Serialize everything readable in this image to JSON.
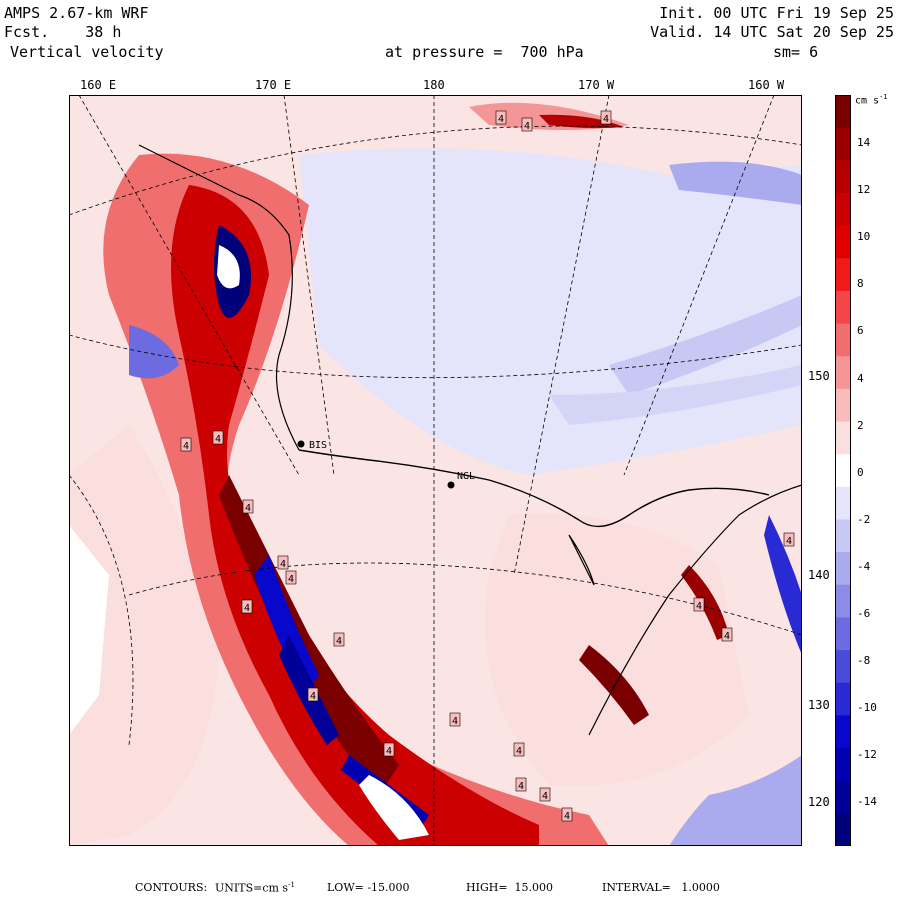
{
  "header": {
    "model": "AMPS 2.67-km WRF",
    "forecast": "Fcst.    38 h",
    "field": "Vertical velocity",
    "init": "Init. 00 UTC Fri 19 Sep 25",
    "valid": "Valid. 14 UTC Sat 20 Sep 25",
    "pressure": "at pressure =  700 hPa",
    "smoothing": "sm= 6"
  },
  "lon_labels": [
    "160 E",
    "170 E",
    "180",
    "170 W",
    "160 W"
  ],
  "lat_labels": [
    "150 W",
    "140 W",
    "130 W",
    "120 W"
  ],
  "colorbar": {
    "units": "cm s",
    "units_exp": "-1",
    "ticks": [
      "14",
      "12",
      "10",
      "8",
      "6",
      "4",
      "2",
      "0",
      "-2",
      "-4",
      "-6",
      "-8",
      "-10",
      "-12",
      "-14"
    ],
    "colors": [
      "#7a0000",
      "#9a0000",
      "#b40000",
      "#cc0000",
      "#e00000",
      "#f01a1a",
      "#f34646",
      "#f06e6e",
      "#f49696",
      "#f8bcbc",
      "#fbdede",
      "#ffffff",
      "#e4e4fb",
      "#c8c8f4",
      "#aaaaee",
      "#8c8ce8",
      "#6c6ce0",
      "#4b4bda",
      "#2a2ad4",
      "#0808cc",
      "#0000b0",
      "#000098",
      "#00007a"
    ]
  },
  "stations": [
    {
      "label": "BIS"
    },
    {
      "label": "NGL"
    }
  ],
  "contour_marker": "4",
  "footer": {
    "contours": "CONTOURS:",
    "units": "UNITS=cm s",
    "units_exp": "-1",
    "low": "LOW= -15.000",
    "high": "HIGH=  15.000",
    "interval": "INTERVAL=   1.0000"
  }
}
